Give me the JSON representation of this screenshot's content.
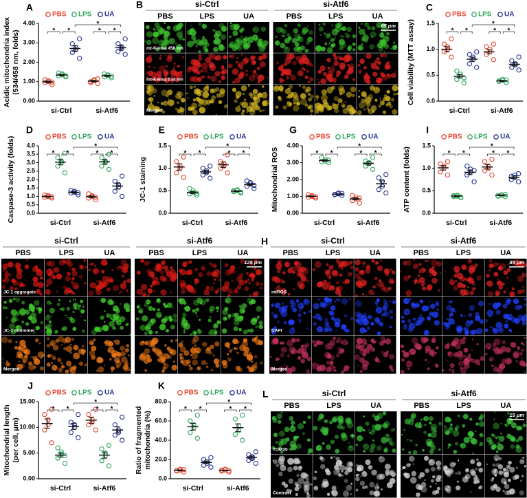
{
  "chart_data": [
    {
      "type": "dot",
      "panel": "A",
      "ylabel": [
        "Acidic mitochondria index",
        "(534/458 nm, folds)"
      ],
      "categories": [
        "si-Ctrl",
        "si-Atf6"
      ],
      "ylim": [
        0,
        4
      ],
      "yticks": [
        {
          "value": 0,
          "label": "0.00"
        },
        {
          "value": 1,
          "label": "1.00"
        },
        {
          "value": 2,
          "label": "2.00"
        },
        {
          "value": 3,
          "label": "3.00"
        },
        {
          "value": 4,
          "label": "4.00"
        }
      ],
      "significance": "*",
      "series": [
        {
          "name": "PBS",
          "color": "#e8432c",
          "values": [
            [
              0.85,
              0.95,
              1.0,
              1.05,
              1.1,
              0.98
            ],
            [
              0.9,
              1.0,
              1.05,
              1.1,
              0.95,
              1.15
            ]
          ],
          "means": [
            0.99,
            1.03
          ],
          "sems": [
            0.04,
            0.04
          ]
        },
        {
          "name": "LPS",
          "color": "#2ea55a",
          "values": [
            [
              1.25,
              1.3,
              1.35,
              1.4,
              1.45,
              1.3
            ],
            [
              1.2,
              1.25,
              1.3,
              1.35,
              1.4,
              1.28
            ]
          ],
          "means": [
            1.34,
            1.3
          ],
          "sems": [
            0.03,
            0.03
          ]
        },
        {
          "name": "UA",
          "color": "#22308f",
          "values": [
            [
              2.2,
              2.5,
              2.65,
              2.75,
              2.95,
              3.2
            ],
            [
              2.4,
              2.55,
              2.7,
              2.8,
              2.95,
              3.2
            ]
          ],
          "means": [
            2.71,
            2.75
          ],
          "sems": [
            0.14,
            0.12
          ]
        }
      ]
    },
    {
      "type": "dot",
      "panel": "C",
      "ylabel": [
        "Cell viability (MTT assay)"
      ],
      "categories": [
        "si-Ctrl",
        "si-Atf6"
      ],
      "ylim": [
        0,
        1.5
      ],
      "yticks": [
        {
          "value": 0,
          "label": "0.0"
        },
        0.5,
        {
          "value": 1,
          "label": "1.0"
        },
        1.5
      ],
      "significance": "*",
      "series": [
        {
          "name": "PBS",
          "color": "#e8432c",
          "values": [
            [
              0.85,
              0.95,
              1.0,
              1.05,
              1.1,
              1.2
            ],
            [
              0.8,
              0.9,
              0.95,
              1.0,
              1.05,
              1.1
            ]
          ],
          "means": [
            1.0,
            0.95
          ],
          "sems": [
            0.05,
            0.04
          ]
        },
        {
          "name": "LPS",
          "color": "#2ea55a",
          "values": [
            [
              0.35,
              0.42,
              0.48,
              0.52,
              0.58,
              0.45
            ],
            [
              0.36,
              0.38,
              0.4,
              0.42,
              0.39,
              0.41
            ]
          ],
          "means": [
            0.48,
            0.39
          ],
          "sems": [
            0.03,
            0.01
          ]
        },
        {
          "name": "UA",
          "color": "#22308f",
          "values": [
            [
              0.65,
              0.72,
              0.8,
              0.85,
              0.9,
              0.95
            ],
            [
              0.6,
              0.65,
              0.7,
              0.72,
              0.78,
              0.85
            ]
          ],
          "means": [
            0.81,
            0.71
          ],
          "sems": [
            0.04,
            0.03
          ]
        }
      ]
    },
    {
      "type": "dot",
      "panel": "D",
      "ylabel": [
        "Caspase-3 activity (folds)"
      ],
      "categories": [
        "si-Ctrl",
        "si-Atf6"
      ],
      "ylim": [
        0,
        4
      ],
      "yticks": [
        {
          "value": 0,
          "label": "0.0"
        },
        0.5,
        {
          "value": 1,
          "label": "1.0"
        },
        1.5,
        {
          "value": 2,
          "label": "2.0"
        },
        2.5,
        {
          "value": 3,
          "label": "3.0"
        },
        3.5,
        {
          "value": 4,
          "label": "4.0"
        }
      ],
      "significance": "*",
      "series": [
        {
          "name": "PBS",
          "color": "#e8432c",
          "values": [
            [
              0.9,
              0.95,
              1.0,
              1.05,
              1.08,
              0.98
            ],
            [
              0.8,
              0.9,
              1.0,
              1.05,
              1.15,
              0.95
            ]
          ],
          "means": [
            0.99,
            0.98
          ],
          "sems": [
            0.03,
            0.05
          ]
        },
        {
          "name": "LPS",
          "color": "#2ea55a",
          "values": [
            [
              2.4,
              2.8,
              3.0,
              3.1,
              3.3,
              3.55
            ],
            [
              2.6,
              2.8,
              3.0,
              3.1,
              3.3,
              3.5
            ]
          ],
          "means": [
            3.03,
            3.05
          ],
          "sems": [
            0.16,
            0.13
          ]
        },
        {
          "name": "UA",
          "color": "#22308f",
          "values": [
            [
              1.1,
              1.2,
              1.25,
              1.3,
              1.35,
              1.22
            ],
            [
              1.0,
              1.3,
              1.55,
              1.7,
              1.9,
              2.2
            ]
          ],
          "means": [
            1.24,
            1.61
          ],
          "sems": [
            0.04,
            0.17
          ]
        }
      ]
    },
    {
      "type": "dot",
      "panel": "E",
      "ylabel": [
        "JC-1 staining"
      ],
      "categories": [
        "si-Ctrl",
        "si-Atf6"
      ],
      "ylim": [
        0,
        1.5
      ],
      "yticks": [
        {
          "value": 0,
          "label": "0.0"
        },
        0.5,
        {
          "value": 1,
          "label": "1.0"
        },
        1.5
      ],
      "significance": "*",
      "series": [
        {
          "name": "PBS",
          "color": "#e8432c",
          "values": [
            [
              0.8,
              0.9,
              1.0,
              1.05,
              1.15,
              1.25
            ],
            [
              0.9,
              1.0,
              1.05,
              1.1,
              1.15,
              1.3
            ]
          ],
          "means": [
            1.03,
            1.08
          ],
          "sems": [
            0.07,
            0.06
          ]
        },
        {
          "name": "LPS",
          "color": "#2ea55a",
          "values": [
            [
              0.4,
              0.43,
              0.46,
              0.5,
              0.55,
              0.44
            ],
            [
              0.45,
              0.48,
              0.5,
              0.52,
              0.5,
              0.47
            ]
          ],
          "means": [
            0.46,
            0.49
          ],
          "sems": [
            0.02,
            0.01
          ]
        },
        {
          "name": "UA",
          "color": "#22308f",
          "values": [
            [
              0.78,
              0.85,
              0.9,
              0.95,
              1.0,
              1.05
            ],
            [
              0.55,
              0.6,
              0.65,
              0.68,
              0.72,
              0.62
            ]
          ],
          "means": [
            0.92,
            0.64
          ],
          "sems": [
            0.04,
            0.02
          ]
        }
      ]
    },
    {
      "type": "dot",
      "panel": "G",
      "ylabel": [
        "Mitochondrial ROS"
      ],
      "categories": [
        "si-Ctrl",
        "si-Atf6"
      ],
      "ylim": [
        0,
        4
      ],
      "yticks": [
        {
          "value": 0,
          "label": "0.00"
        },
        {
          "value": 1,
          "label": "1.00"
        },
        {
          "value": 2,
          "label": "2.00"
        },
        {
          "value": 3,
          "label": "3.00"
        },
        {
          "value": 4,
          "label": "4.00"
        }
      ],
      "significance": "*",
      "series": [
        {
          "name": "PBS",
          "color": "#e8432c",
          "values": [
            [
              0.9,
              0.95,
              1.0,
              1.05,
              1.1,
              0.98
            ],
            [
              0.6,
              0.75,
              0.85,
              0.95,
              1.05,
              0.9
            ]
          ],
          "means": [
            1.0,
            0.85
          ],
          "sems": [
            0.03,
            0.06
          ]
        },
        {
          "name": "LPS",
          "color": "#2ea55a",
          "values": [
            [
              3.0,
              3.05,
              3.1,
              3.2,
              3.3,
              3.15
            ],
            [
              2.6,
              2.8,
              2.95,
              3.0,
              3.1,
              3.3
            ]
          ],
          "means": [
            3.13,
            2.96
          ],
          "sems": [
            0.04,
            0.1
          ]
        },
        {
          "name": "UA",
          "color": "#22308f",
          "values": [
            [
              1.05,
              1.1,
              1.15,
              1.2,
              1.12,
              1.18
            ],
            [
              1.2,
              1.4,
              1.6,
              1.9,
              2.1,
              2.3
            ]
          ],
          "means": [
            1.13,
            1.75
          ],
          "sems": [
            0.02,
            0.17
          ]
        }
      ]
    },
    {
      "type": "dot",
      "panel": "I",
      "ylabel": [
        "ATP content (folds)"
      ],
      "categories": [
        "si-Ctrl",
        "si-Atf6"
      ],
      "ylim": [
        0,
        1.5
      ],
      "yticks": [
        {
          "value": 0,
          "label": "0.0"
        },
        0.5,
        {
          "value": 1,
          "label": "1.0"
        },
        1.5
      ],
      "significance": "*",
      "series": [
        {
          "name": "PBS",
          "color": "#e8432c",
          "values": [
            [
              0.85,
              0.92,
              1.0,
              1.05,
              1.1,
              1.15
            ],
            [
              0.85,
              0.95,
              1.0,
              1.05,
              1.15,
              1.2
            ]
          ],
          "means": [
            1.01,
            1.03
          ],
          "sems": [
            0.05,
            0.05
          ]
        },
        {
          "name": "LPS",
          "color": "#2ea55a",
          "values": [
            [
              0.35,
              0.37,
              0.38,
              0.4,
              0.39,
              0.36
            ],
            [
              0.37,
              0.38,
              0.4,
              0.41,
              0.39,
              0.42
            ]
          ],
          "means": [
            0.38,
            0.4
          ],
          "sems": [
            0.01,
            0.01
          ]
        },
        {
          "name": "UA",
          "color": "#22308f",
          "values": [
            [
              0.7,
              0.85,
              0.92,
              0.98,
              1.05,
              0.95
            ],
            [
              0.7,
              0.75,
              0.8,
              0.85,
              0.82,
              0.88
            ]
          ],
          "means": [
            0.91,
            0.8
          ],
          "sems": [
            0.05,
            0.03
          ]
        }
      ]
    },
    {
      "type": "dot",
      "panel": "J",
      "ylabel": [
        "Mitochondrial length",
        "(per cell, μm)"
      ],
      "categories": [
        "si-Ctrl",
        "si-Atf6"
      ],
      "ylim": [
        0,
        15
      ],
      "yticks": [
        {
          "value": 0,
          "label": "0.00"
        },
        {
          "value": 5,
          "label": "5.00"
        },
        {
          "value": 10,
          "label": "10.00"
        },
        {
          "value": 15,
          "label": "15.00"
        }
      ],
      "significance": "*",
      "series": [
        {
          "name": "PBS",
          "color": "#e8432c",
          "values": [
            [
              7.0,
              9.5,
              10.5,
              11.5,
              12.5,
              13.5
            ],
            [
              9.5,
              10.5,
              11.0,
              11.5,
              12.5,
              13.5
            ]
          ],
          "means": [
            10.75,
            11.4
          ],
          "sems": [
            0.9,
            0.6
          ]
        },
        {
          "name": "LPS",
          "color": "#2ea55a",
          "values": [
            [
              3.0,
              4.0,
              4.8,
              5.2,
              6.0,
              4.5
            ],
            [
              2.5,
              3.5,
              4.5,
              5.0,
              5.8,
              6.5
            ]
          ],
          "means": [
            4.6,
            4.6
          ],
          "sems": [
            0.4,
            0.6
          ]
        },
        {
          "name": "UA",
          "color": "#22308f",
          "values": [
            [
              8.0,
              9.0,
              10.0,
              10.5,
              11.0,
              12.5
            ],
            [
              7.5,
              8.5,
              9.0,
              9.5,
              10.5,
              12.0
            ]
          ],
          "means": [
            10.2,
            9.5
          ],
          "sems": [
            0.6,
            0.6
          ]
        }
      ]
    },
    {
      "type": "dot",
      "panel": "K",
      "ylabel": [
        "Ratio of fragmented",
        "mitochondria (%)"
      ],
      "categories": [
        "si-Ctrl",
        "si-Atf6"
      ],
      "ylim": [
        0,
        80
      ],
      "yticks": [
        {
          "value": 0,
          "label": "0.0"
        },
        {
          "value": 20,
          "label": "20.0"
        },
        {
          "value": 40,
          "label": "40.0"
        },
        {
          "value": 60,
          "label": "60.0"
        },
        {
          "value": 80,
          "label": "80.0"
        }
      ],
      "significance": "*",
      "series": [
        {
          "name": "PBS",
          "color": "#e8432c",
          "values": [
            [
              7,
              8,
              9,
              10,
              8.5,
              9.5
            ],
            [
              7,
              8,
              9,
              10,
              9,
              8.5
            ]
          ],
          "means": [
            8.7,
            8.6
          ],
          "sems": [
            0.5,
            0.4
          ]
        },
        {
          "name": "LPS",
          "color": "#2ea55a",
          "values": [
            [
              42,
              48,
              53,
              56,
              60,
              66
            ],
            [
              40,
              46,
              50,
              55,
              62,
              66
            ]
          ],
          "means": [
            54,
            53
          ],
          "sems": [
            3.5,
            4
          ]
        },
        {
          "name": "UA",
          "color": "#22308f",
          "values": [
            [
              12,
              14,
              16,
              18,
              20,
              22
            ],
            [
              16,
              19,
              21,
              23,
              25,
              28
            ]
          ],
          "means": [
            17,
            22
          ],
          "sems": [
            1.5,
            1.7
          ]
        }
      ]
    }
  ],
  "image_panels": [
    {
      "panel": "B",
      "groups": [
        "si-Ctrl",
        "si-Atf6"
      ],
      "columns": [
        "PBS",
        "LPS",
        "UA",
        "PBS",
        "LPS",
        "UA"
      ],
      "rows": [
        "mt-Keima 458 nm",
        "mt-Keima 534 nm",
        "Merged"
      ],
      "row_colors": [
        "#3cc22e",
        "#e02020",
        "#d8b820"
      ],
      "scale_bar": "65 μm"
    },
    {
      "panel": "F",
      "groups": [
        "si-Ctrl",
        "si-Atf6"
      ],
      "columns": [
        "PBS",
        "LPS",
        "UA",
        "PBS",
        "LPS",
        "UA"
      ],
      "rows": [
        "JC-1 aggregate",
        "JC-1 monomer",
        "Merged"
      ],
      "row_colors": [
        "#e01a14",
        "#44d22e",
        "#f07a18"
      ],
      "scale_bar": "125 μm"
    },
    {
      "panel": "H",
      "groups": [
        "si-Ctrl",
        "si-Atf6"
      ],
      "columns": [
        "PBS",
        "LPS",
        "UA",
        "PBS",
        "LPS",
        "UA"
      ],
      "rows": [
        "mtROS",
        "DAPI",
        "Merged"
      ],
      "row_colors": [
        "#e02020",
        "#2040ff",
        "#c0305a"
      ],
      "scale_bar": "85 μm"
    },
    {
      "panel": "L",
      "groups": [
        "si-Ctrl",
        "si-Atf6"
      ],
      "columns": [
        "PBS",
        "LPS",
        "UA",
        "PBS",
        "LPS",
        "UA"
      ],
      "rows": [
        "TOM20",
        "Contrast"
      ],
      "row_colors": [
        "#3cc23c",
        "#d8d8d8"
      ],
      "scale_bar": "15 μm"
    }
  ]
}
